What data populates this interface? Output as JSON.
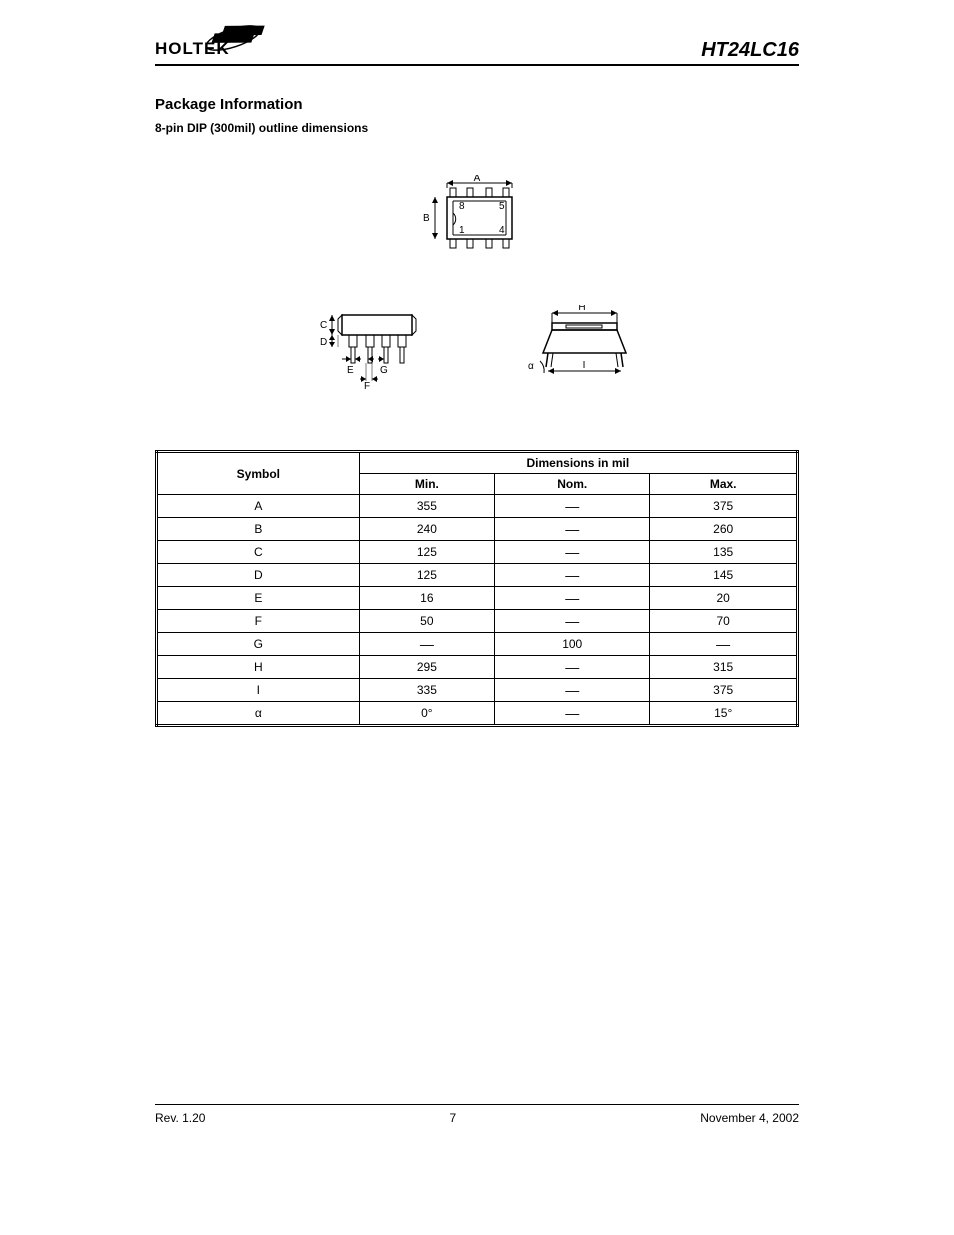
{
  "header": {
    "logo_text": "HOLTEK",
    "part_number": "HT24LC16"
  },
  "section_title": "Package Information",
  "subheading": "8-pin DIP (300mil) outline dimensions",
  "diagram_labels": {
    "top": {
      "A": "A",
      "B": "B",
      "pin8": "8",
      "pin5": "5",
      "pin1": "1",
      "pin4": "4"
    },
    "side_left": {
      "C": "C",
      "D": "D",
      "E": "E",
      "F": "F",
      "G": "G"
    },
    "side_right": {
      "H": "H",
      "I": "I",
      "alpha": "α"
    }
  },
  "table": {
    "header_symbol": "Symbol",
    "header_dimensions": "Dimensions in mil",
    "header_min": "Min.",
    "header_nom": "Nom.",
    "header_max": "Max.",
    "rows": [
      {
        "symbol": "A",
        "min": "355",
        "nom": "—",
        "max": "375"
      },
      {
        "symbol": "B",
        "min": "240",
        "nom": "—",
        "max": "260"
      },
      {
        "symbol": "C",
        "min": "125",
        "nom": "—",
        "max": "135"
      },
      {
        "symbol": "D",
        "min": "125",
        "nom": "—",
        "max": "145"
      },
      {
        "symbol": "E",
        "min": "16",
        "nom": "—",
        "max": "20"
      },
      {
        "symbol": "F",
        "min": "50",
        "nom": "—",
        "max": "70"
      },
      {
        "symbol": "G",
        "min": "—",
        "nom": "100",
        "max": "—"
      },
      {
        "symbol": "H",
        "min": "295",
        "nom": "—",
        "max": "315"
      },
      {
        "symbol": "I",
        "min": "335",
        "nom": "—",
        "max": "375"
      },
      {
        "symbol": "α",
        "min": "0°",
        "nom": "—",
        "max": "15°"
      }
    ]
  },
  "footer": {
    "rev": "Rev. 1.20",
    "page": "7",
    "date": "November 4, 2002"
  },
  "colors": {
    "text": "#000000",
    "background": "#ffffff",
    "border": "#000000"
  }
}
